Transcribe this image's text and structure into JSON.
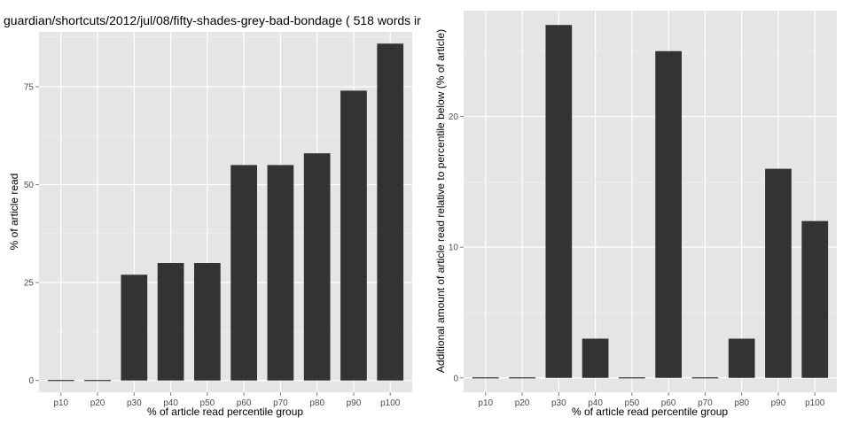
{
  "chart_data": [
    {
      "type": "bar",
      "title": "guardian/shortcuts/2012/jul/08/fifty-shades-grey-bad-bondage ( 518 words ir",
      "xlabel": "% of article read percentile group",
      "ylabel": "% of article read",
      "categories": [
        "p10",
        "p20",
        "p30",
        "p40",
        "p50",
        "p60",
        "p70",
        "p80",
        "p90",
        "p100"
      ],
      "values": [
        0,
        0,
        27,
        30,
        30,
        55,
        55,
        58,
        74,
        86
      ],
      "ylim": [
        -3,
        89
      ],
      "yticks": [
        0,
        25,
        50,
        75
      ],
      "grid": true,
      "colors": {
        "bar": "#333333",
        "panel": "#e5e5e5",
        "grid": "#f2f2f2"
      }
    },
    {
      "type": "bar",
      "title": "",
      "xlabel": "% of article read percentile group",
      "ylabel": "Additional amount of article read relative to percentile below (% of article)",
      "categories": [
        "p10",
        "p20",
        "p30",
        "p40",
        "p50",
        "p60",
        "p70",
        "p80",
        "p90",
        "p100"
      ],
      "values": [
        0,
        0,
        27,
        3,
        0,
        25,
        0,
        3,
        16,
        12
      ],
      "ylim": [
        -1.1,
        28.1
      ],
      "yticks": [
        0,
        10,
        20
      ],
      "grid": true,
      "colors": {
        "bar": "#333333",
        "panel": "#e5e5e5",
        "grid": "#f2f2f2"
      }
    }
  ]
}
